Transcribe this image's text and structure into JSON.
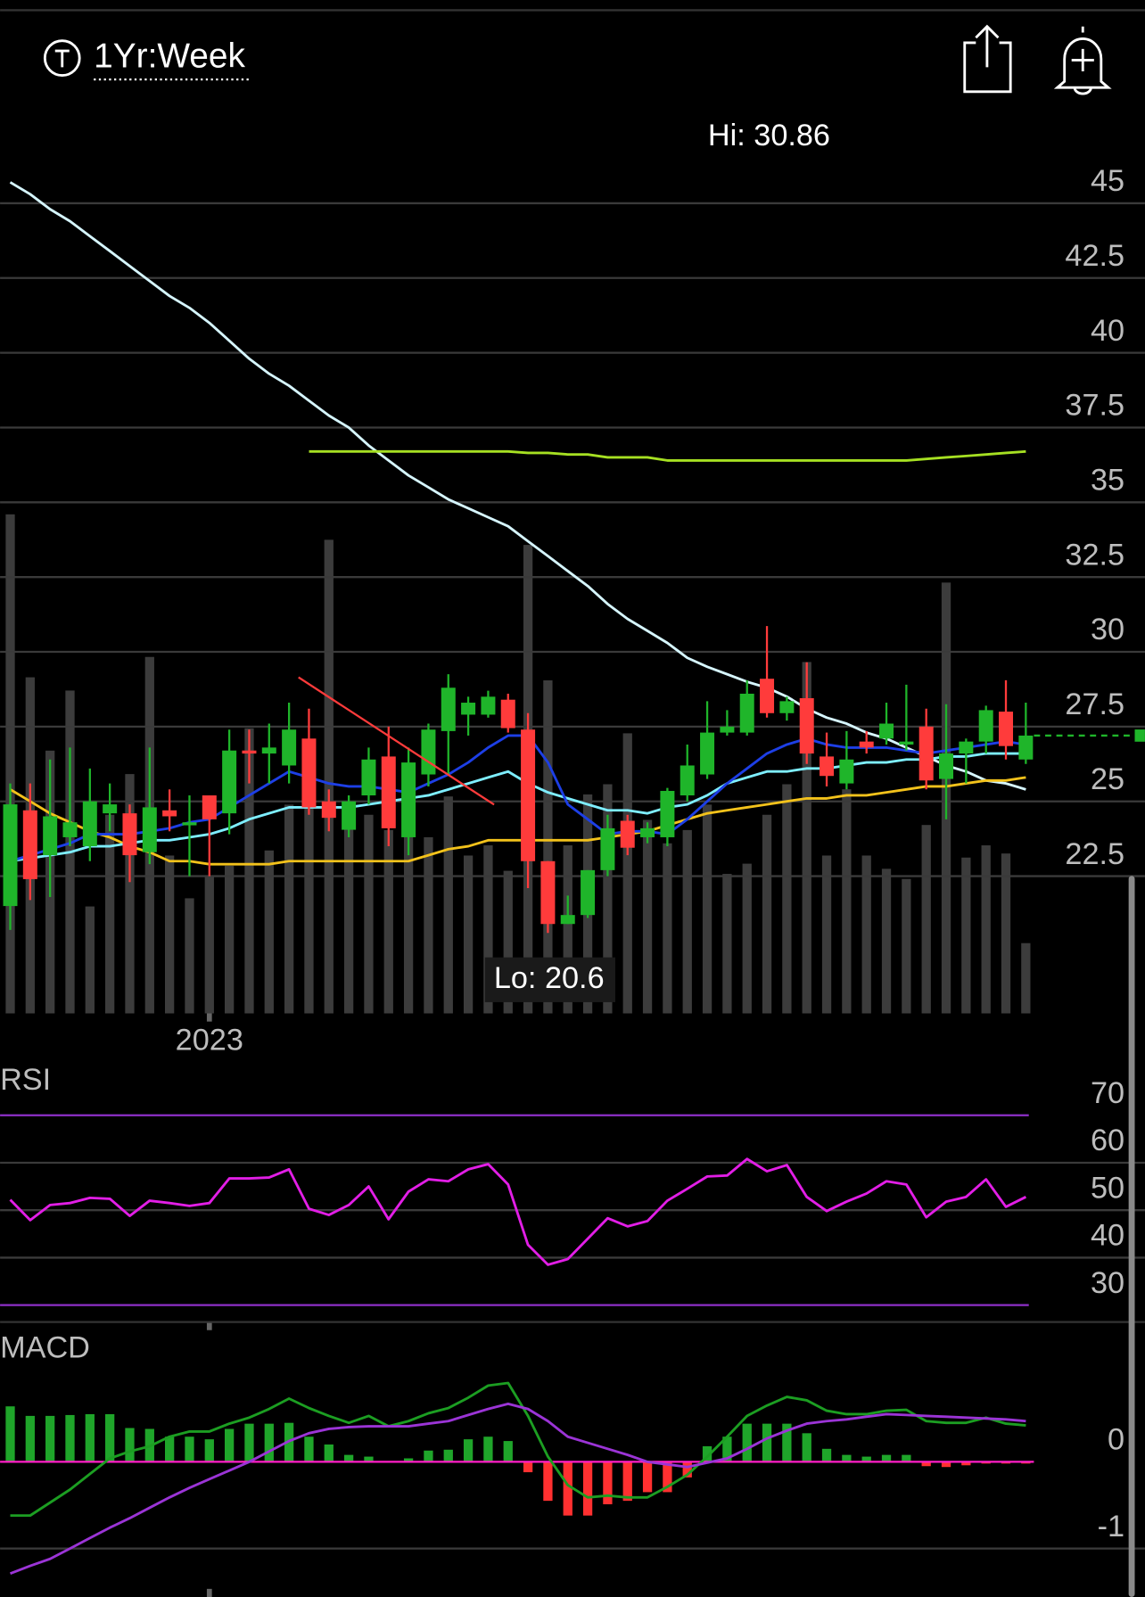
{
  "header": {
    "range": "1Yr:Week"
  },
  "chart_data": [
    {
      "type": "candlestick",
      "annotations": [
        "Hi: 30.86",
        "Lo: 20.6"
      ],
      "categories": [
        null,
        null,
        null,
        null,
        null,
        null,
        null,
        null,
        null,
        null,
        "2023",
        null,
        null,
        null,
        null,
        null,
        null,
        null,
        null,
        null,
        null,
        null,
        null,
        null,
        null,
        null,
        null,
        null,
        null,
        null,
        null,
        null,
        null,
        null,
        null,
        null,
        null,
        null,
        null,
        null,
        null,
        null,
        null,
        null,
        null,
        null,
        null,
        null,
        null,
        null,
        null,
        null
      ],
      "open": [
        21.5,
        24.7,
        23.2,
        23.8,
        23.5,
        24.6,
        24.6,
        23.3,
        24.7,
        24.2,
        25.2,
        24.6,
        26.7,
        26.6,
        26.2,
        27.1,
        25.0,
        24.05,
        25.2,
        26.5,
        23.8,
        25.9,
        27.35,
        27.9,
        27.9,
        28.4,
        27.4,
        23.0,
        20.9,
        21.2,
        22.7,
        24.35,
        23.8,
        23.8,
        25.2,
        25.9,
        27.3,
        27.3,
        29.1,
        27.95,
        28.45,
        26.5,
        25.6,
        27.0,
        27.1,
        26.9,
        27.5,
        25.75,
        26.6,
        27.0,
        28.0,
        26.4
      ],
      "high": [
        25.6,
        25.6,
        26.4,
        26.8,
        26.1,
        25.6,
        24.9,
        26.8,
        25.4,
        25.2,
        25.2,
        27.4,
        27.4,
        27.6,
        28.3,
        28.1,
        25.4,
        25.2,
        26.8,
        27.5,
        26.8,
        27.6,
        29.25,
        28.5,
        28.7,
        28.6,
        27.95,
        23.0,
        21.85,
        22.7,
        24.55,
        24.55,
        24.3,
        25.45,
        26.9,
        28.35,
        28.05,
        29.05,
        30.86,
        28.5,
        29.65,
        27.3,
        27.35,
        27.35,
        28.3,
        28.9,
        28.1,
        28.25,
        27.1,
        28.2,
        29.05,
        28.3
      ],
      "low": [
        20.7,
        21.7,
        21.8,
        23.5,
        23.0,
        24.0,
        22.3,
        22.9,
        24.0,
        22.5,
        22.5,
        23.9,
        25.6,
        25.6,
        25.6,
        24.55,
        24.0,
        23.8,
        24.9,
        23.5,
        23.2,
        25.5,
        25.9,
        27.2,
        27.8,
        27.3,
        22.1,
        20.6,
        20.9,
        21.1,
        22.5,
        23.2,
        23.6,
        23.5,
        25.0,
        25.75,
        27.2,
        27.2,
        27.8,
        27.7,
        26.25,
        25.5,
        25.4,
        26.6,
        26.9,
        26.7,
        25.4,
        24.4,
        25.6,
        26.6,
        26.4,
        26.25
      ],
      "close": [
        24.9,
        22.4,
        24.5,
        24.3,
        25.0,
        24.9,
        23.2,
        24.8,
        24.5,
        24.3,
        24.4,
        26.7,
        26.6,
        26.8,
        27.4,
        24.8,
        24.45,
        25.0,
        26.4,
        24.1,
        26.3,
        27.4,
        28.8,
        28.3,
        28.5,
        27.45,
        23.0,
        20.9,
        21.2,
        22.7,
        24.1,
        23.45,
        24.1,
        25.35,
        26.2,
        27.3,
        27.5,
        28.6,
        27.95,
        28.35,
        26.6,
        25.85,
        26.4,
        26.8,
        27.6,
        27.0,
        25.7,
        26.6,
        27.0,
        28.05,
        26.85,
        27.2
      ],
      "volume": [
        490,
        330,
        258,
        317,
        105,
        195,
        235,
        350,
        155,
        113,
        135,
        145,
        280,
        160,
        205,
        220,
        465,
        205,
        195,
        180,
        195,
        173,
        213,
        155,
        165,
        140,
        460,
        327,
        165,
        215,
        225,
        275,
        190,
        167,
        180,
        205,
        137,
        147,
        195,
        225,
        345,
        155,
        220,
        155,
        142,
        132,
        185,
        423,
        153,
        165,
        157,
        69
      ],
      "volume_color": "#3c3c3c",
      "up_color": "#1fb52a",
      "down_color": "#ff3b3b",
      "overlays": [
        {
          "color": "#d6f6ff",
          "values": [
            45.7,
            45.3,
            44.8,
            44.4,
            43.9,
            43.4,
            42.9,
            42.4,
            41.9,
            41.5,
            41.0,
            40.4,
            39.8,
            39.3,
            38.9,
            38.4,
            37.9,
            37.5,
            36.9,
            36.4,
            35.9,
            35.5,
            35.1,
            34.8,
            34.5,
            34.2,
            33.7,
            33.2,
            32.7,
            32.2,
            31.6,
            31.1,
            30.7,
            30.3,
            29.8,
            29.5,
            29.25,
            29.0,
            28.8,
            28.5,
            28.1,
            27.8,
            27.6,
            27.3,
            27.1,
            26.8,
            26.5,
            26.2,
            26.0,
            25.7,
            25.6,
            25.4
          ]
        },
        {
          "color": "#a6e022",
          "values": [
            null,
            null,
            null,
            null,
            null,
            null,
            null,
            null,
            null,
            null,
            null,
            null,
            null,
            null,
            null,
            36.7,
            36.7,
            36.7,
            36.7,
            36.7,
            36.7,
            36.7,
            36.7,
            36.7,
            36.7,
            36.7,
            36.65,
            36.65,
            36.6,
            36.6,
            36.5,
            36.5,
            36.5,
            36.4,
            36.4,
            36.4,
            36.4,
            36.4,
            36.4,
            36.4,
            36.4,
            36.4,
            36.4,
            36.4,
            36.4,
            36.4,
            36.45,
            36.5,
            36.55,
            36.6,
            36.65,
            36.7
          ]
        },
        {
          "color": "#f3c21b",
          "values": [
            25.4,
            25.0,
            24.6,
            24.3,
            24.0,
            23.8,
            23.5,
            23.3,
            23.0,
            23.0,
            22.9,
            22.9,
            22.9,
            22.9,
            23.0,
            23.0,
            23.0,
            23.0,
            23.0,
            23.0,
            23.0,
            23.2,
            23.4,
            23.5,
            23.7,
            23.7,
            23.7,
            23.7,
            23.7,
            23.7,
            23.8,
            23.9,
            24.0,
            24.2,
            24.4,
            24.6,
            24.7,
            24.8,
            24.9,
            25.0,
            25.1,
            25.1,
            25.2,
            25.2,
            25.3,
            25.4,
            25.5,
            25.5,
            25.6,
            25.7,
            25.7,
            25.8
          ]
        },
        {
          "color": "#7eeeff",
          "values": [
            23.0,
            23.1,
            23.2,
            23.3,
            23.5,
            23.5,
            23.6,
            23.7,
            23.7,
            23.8,
            23.9,
            24.1,
            24.4,
            24.6,
            24.8,
            24.8,
            24.8,
            24.8,
            24.9,
            25.0,
            25.1,
            25.2,
            25.4,
            25.6,
            25.8,
            26.0,
            25.6,
            25.3,
            25.1,
            24.9,
            24.7,
            24.7,
            24.6,
            24.8,
            24.9,
            25.2,
            25.6,
            25.8,
            26.0,
            26.0,
            26.1,
            26.1,
            26.2,
            26.3,
            26.3,
            26.4,
            26.4,
            26.5,
            26.5,
            26.6,
            26.6,
            26.6
          ]
        },
        {
          "color": "#1d3fe6",
          "values": [
            23.0,
            23.2,
            23.4,
            23.6,
            23.9,
            23.9,
            23.9,
            24.0,
            24.1,
            24.3,
            24.4,
            24.8,
            25.2,
            25.6,
            26.0,
            25.8,
            25.6,
            25.5,
            25.5,
            25.4,
            25.3,
            25.6,
            25.9,
            26.3,
            26.8,
            27.2,
            27.2,
            26.3,
            24.9,
            24.4,
            23.9,
            24.0,
            24.0,
            23.9,
            24.4,
            25.0,
            25.6,
            26.1,
            26.6,
            26.9,
            27.1,
            26.9,
            26.8,
            26.8,
            26.8,
            26.7,
            26.6,
            26.7,
            26.8,
            26.9,
            27.0,
            26.9
          ]
        }
      ],
      "ylim": [
        17.91,
        48.05
      ],
      "yticks": [
        22.5,
        25,
        27.5,
        30,
        32.5,
        35,
        37.5,
        40,
        42.5,
        45
      ],
      "grid": true
    },
    {
      "type": "line",
      "title": "RSI",
      "values": [
        52.2,
        47.9,
        51.1,
        51.5,
        52.6,
        52.4,
        48.8,
        52.0,
        51.5,
        50.9,
        51.5,
        56.7,
        56.7,
        56.9,
        58.6,
        50.3,
        49.0,
        51.1,
        55.0,
        48.1,
        53.9,
        56.5,
        56.1,
        58.6,
        59.7,
        55.4,
        42.7,
        38.5,
        39.7,
        44.0,
        48.3,
        46.6,
        47.7,
        52.0,
        54.5,
        57.1,
        57.3,
        60.8,
        58.2,
        59.5,
        52.8,
        49.8,
        51.8,
        53.5,
        56.1,
        55.4,
        48.5,
        51.8,
        52.8,
        56.5,
        50.7,
        52.8
      ],
      "color": "#e21ee6",
      "threshold_color": "#8e2fc8",
      "ylim": [
        26.44,
        80.73
      ],
      "yticks": [
        30,
        40,
        50,
        60,
        70
      ],
      "grid": true
    },
    {
      "type": "macd",
      "title": "MACD",
      "histogram": [
        0.64,
        0.53,
        0.53,
        0.54,
        0.55,
        0.55,
        0.39,
        0.38,
        0.29,
        0.29,
        0.26,
        0.38,
        0.44,
        0.44,
        0.45,
        0.29,
        0.2,
        0.08,
        0.06,
        -0.01,
        0.04,
        0.13,
        0.14,
        0.26,
        0.29,
        0.24,
        -0.12,
        -0.45,
        -0.62,
        -0.62,
        -0.49,
        -0.45,
        -0.35,
        -0.35,
        -0.18,
        0.18,
        0.29,
        0.44,
        0.44,
        0.44,
        0.33,
        0.15,
        0.08,
        0.06,
        0.08,
        0.08,
        -0.05,
        -0.06,
        -0.04,
        -0.02,
        -0.02,
        -0.02
      ],
      "macd": [
        -0.62,
        -0.62,
        -0.47,
        -0.32,
        -0.14,
        0.04,
        0.12,
        0.18,
        0.29,
        0.35,
        0.35,
        0.44,
        0.51,
        0.61,
        0.73,
        0.62,
        0.53,
        0.45,
        0.53,
        0.41,
        0.47,
        0.56,
        0.62,
        0.74,
        0.88,
        0.91,
        0.53,
        0.06,
        -0.27,
        -0.41,
        -0.39,
        -0.41,
        -0.41,
        -0.29,
        -0.15,
        0.06,
        0.29,
        0.53,
        0.65,
        0.75,
        0.71,
        0.59,
        0.55,
        0.55,
        0.59,
        0.6,
        0.47,
        0.45,
        0.45,
        0.51,
        0.44,
        0.42
      ],
      "signal": [
        -1.29,
        -1.2,
        -1.12,
        -1.0,
        -0.88,
        -0.76,
        -0.65,
        -0.53,
        -0.41,
        -0.3,
        -0.2,
        -0.1,
        0,
        0.12,
        0.24,
        0.33,
        0.38,
        0.4,
        0.41,
        0.41,
        0.41,
        0.44,
        0.47,
        0.54,
        0.61,
        0.67,
        0.61,
        0.47,
        0.29,
        0.22,
        0.15,
        0.08,
        0,
        -0.03,
        -0.06,
        -0.01,
        0.04,
        0.15,
        0.27,
        0.36,
        0.44,
        0.47,
        0.49,
        0.52,
        0.55,
        0.54,
        0.53,
        0.52,
        0.51,
        0.5,
        0.49,
        0.47
      ],
      "up_color": "#1fa52a",
      "down_color": "#ff3030",
      "macd_color": "#1c9e22",
      "signal_color": "#9b34d6",
      "zero_color": "#ff1ec8",
      "ylim": [
        -1.56,
        1.59
      ],
      "yticks": [
        -1,
        0
      ],
      "grid": true
    }
  ]
}
